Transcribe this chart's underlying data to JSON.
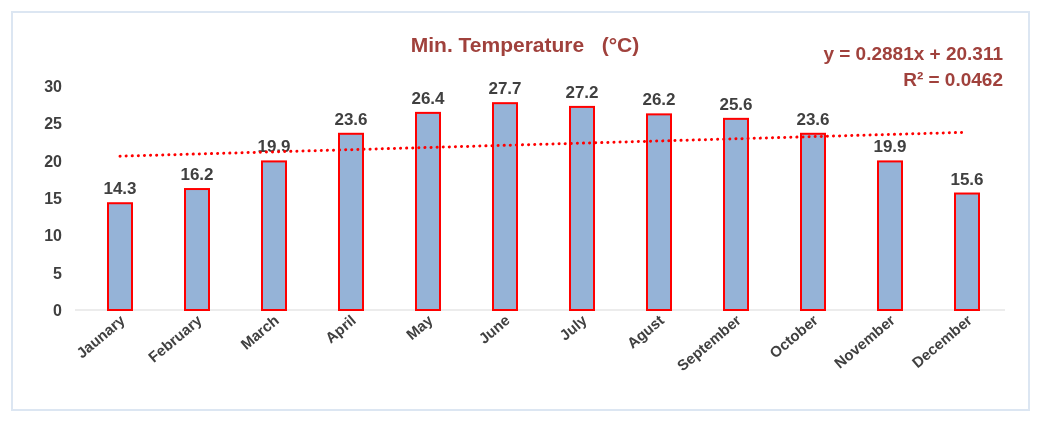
{
  "chart_data": {
    "type": "bar",
    "title": "Min. Temperature   (°C)",
    "categories": [
      "Jaunary",
      "February",
      "March",
      "April",
      "May",
      "June",
      "July",
      "Agust",
      "September",
      "October",
      "November",
      "December"
    ],
    "series": [
      {
        "color": "#95b3d7",
        "values": [
          14.3,
          16.2,
          19.9,
          23.6,
          26.4,
          27.7,
          27.2,
          26.2,
          25.6,
          23.6,
          19.9,
          15.6
        ]
      },
      {
        "type": "line",
        "color": "#ff0000",
        "x": [
          "Jaunary",
          "December"
        ],
        "values": [
          20.6,
          23.8
        ],
        "value_labels": [
          null,
          null
        ],
        "line_style": "dotted"
      }
    ],
    "ylim": [
      0,
      30
    ],
    "yticks": [
      0,
      5,
      10,
      15,
      20,
      25,
      30
    ],
    "grid": false,
    "data_labels": true,
    "annotations": [
      "y = 0.2881x + 20.311",
      "R² = 0.0462"
    ]
  }
}
